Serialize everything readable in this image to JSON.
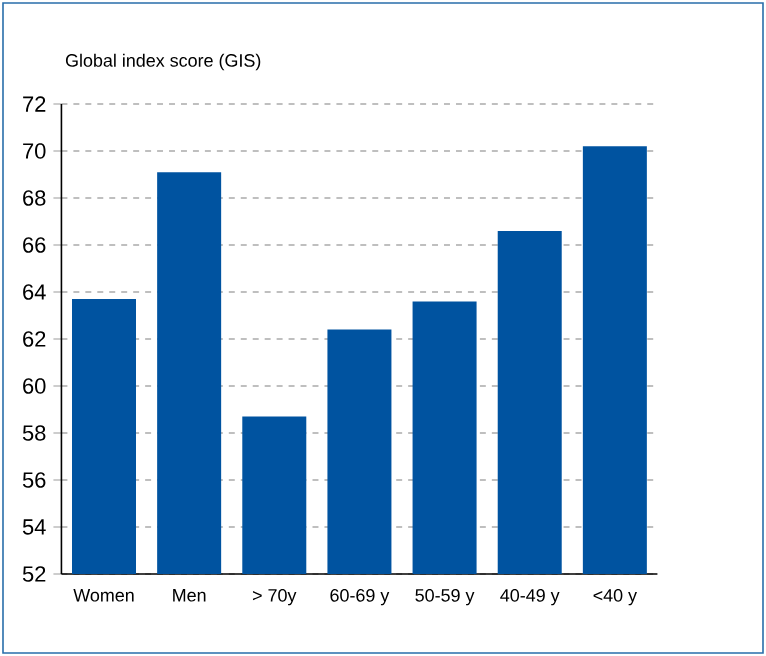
{
  "chart_data": {
    "type": "bar",
    "ylabel": "Global index score (GIS)",
    "categories": [
      "Women",
      "Men",
      "> 70y",
      "60-69 y",
      "50-59 y",
      "40-49 y",
      "<40 y"
    ],
    "values": [
      63.7,
      69.1,
      58.7,
      62.4,
      63.6,
      66.6,
      70.2
    ],
    "color": "#0053a0",
    "ylim": [
      52,
      72
    ],
    "yticks": [
      52,
      54,
      56,
      58,
      60,
      62,
      64,
      66,
      68,
      70,
      72
    ],
    "grid": "y"
  }
}
